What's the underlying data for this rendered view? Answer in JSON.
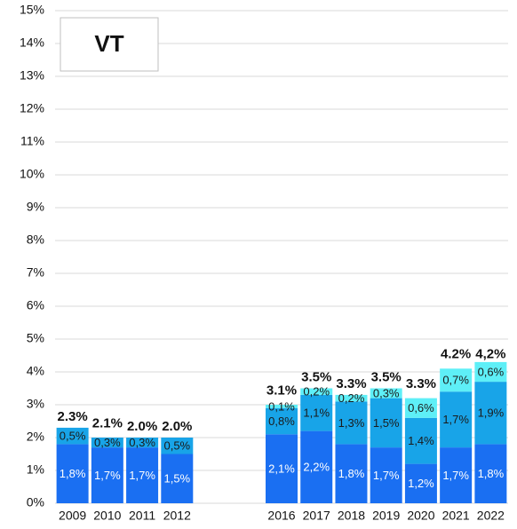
{
  "chart_data": {
    "type": "stacked_bar",
    "title": "VT",
    "categories": [
      "2009",
      "2010",
      "2011",
      "2012",
      null,
      null,
      "2016",
      "2017",
      "2018",
      "2019",
      "2020",
      "2021",
      "2022"
    ],
    "series": [
      {
        "color": "#1a6ff2",
        "values": [
          1.8,
          1.7,
          1.7,
          1.5,
          null,
          null,
          2.1,
          2.2,
          1.8,
          1.7,
          1.2,
          1.7,
          1.8
        ],
        "value_labels": [
          "1,8%",
          "1,7%",
          "1,7%",
          "1,5%",
          null,
          null,
          "2,1%",
          "2,2%",
          "1,8%",
          "1,7%",
          "1,2%",
          "1,7%",
          "1,8%"
        ]
      },
      {
        "color": "#18a4e8",
        "values": [
          0.5,
          0.3,
          0.3,
          0.5,
          null,
          null,
          0.8,
          1.1,
          1.3,
          1.5,
          1.4,
          1.7,
          1.9
        ],
        "value_labels": [
          "0,5%",
          "0,3%",
          "0,3%",
          "0,5%",
          null,
          null,
          "0,8%",
          "1,1%",
          "1,3%",
          "1,5%",
          "1,4%",
          "1,7%",
          "1,9%"
        ]
      },
      {
        "color": "#5eeff7",
        "values": [
          null,
          null,
          null,
          null,
          null,
          null,
          0.1,
          0.2,
          0.2,
          0.3,
          0.6,
          0.7,
          0.6
        ],
        "value_labels": [
          null,
          null,
          null,
          null,
          null,
          null,
          "0,1%",
          "0,2%",
          "0,2%",
          "0,3%",
          "0,6%",
          "0,7%",
          "0,6%"
        ]
      }
    ],
    "totals": [
      2.3,
      2.1,
      2.0,
      2.0,
      null,
      null,
      3.1,
      3.5,
      3.3,
      3.5,
      3.3,
      4.2,
      4.2
    ],
    "total_labels": [
      "2.3%",
      "2.1%",
      "2.0%",
      "2.0%",
      null,
      null,
      "3.1%",
      "3.5%",
      "3.3%",
      "3.5%",
      "3.3%",
      "4.2%",
      "4,2%"
    ],
    "ylim": [
      0,
      15
    ],
    "yticks": [
      {
        "value": 0,
        "label": "0%"
      },
      {
        "value": 1,
        "label": "1%"
      },
      {
        "value": 2,
        "label": "2%"
      },
      {
        "value": 3,
        "label": "3%"
      },
      {
        "value": 4,
        "label": "4%"
      },
      {
        "value": 5,
        "label": "5%"
      },
      {
        "value": 6,
        "label": "6%"
      },
      {
        "value": 7,
        "label": "7%"
      },
      {
        "value": 8,
        "label": "8%"
      },
      {
        "value": 9,
        "label": "9%"
      },
      {
        "value": 10,
        "label": "10%"
      },
      {
        "value": 11,
        "label": "11%"
      },
      {
        "value": 12,
        "label": "12%"
      },
      {
        "value": 13,
        "label": "13%"
      },
      {
        "value": 14,
        "label": "14%"
      },
      {
        "value": 15,
        "label": "15%"
      }
    ],
    "grid": true
  }
}
